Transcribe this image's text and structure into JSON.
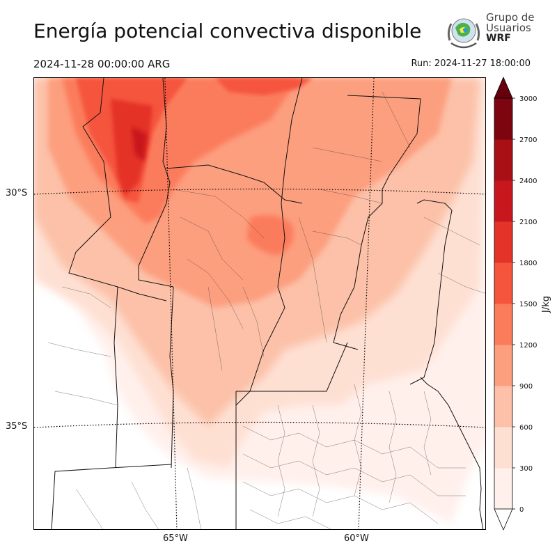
{
  "header": {
    "title": "Energía potencial convectiva disponible",
    "valid_time": "2024-11-28 00:00:00 ARG",
    "run_time": "Run: 2024-11-27 18:00:00"
  },
  "logo": {
    "line1": "Grupo de",
    "line2": "Usuarios",
    "line3": "WRF"
  },
  "map": {
    "lat_labels": [
      "30°S",
      "35°S"
    ],
    "lon_labels": [
      "65°W",
      "60°W"
    ]
  },
  "colorbar": {
    "unit": "J/kg",
    "levels": [
      0,
      300,
      600,
      900,
      1200,
      1500,
      1800,
      2100,
      2400,
      2700,
      3000
    ],
    "tick_labels": [
      "0",
      "300",
      "600",
      "900",
      "1200",
      "1500",
      "1800",
      "2100",
      "2400",
      "2700",
      "3000"
    ],
    "colors": [
      "#fff0ec",
      "#fee0d3",
      "#fcc1a8",
      "#fc9f7f",
      "#fb7c5b",
      "#f5553c",
      "#e43328",
      "#c9181d",
      "#a81016",
      "#7c0510"
    ],
    "under_color": "#ffffff",
    "over_color": "#67000d"
  }
}
